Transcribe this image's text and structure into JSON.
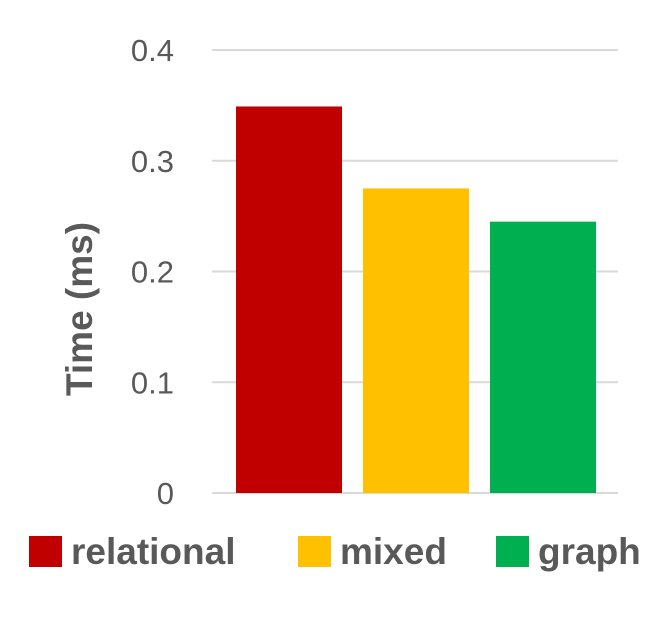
{
  "chart_data": {
    "type": "bar",
    "categories": [
      "relational",
      "mixed",
      "graph"
    ],
    "values": [
      0.349,
      0.275,
      0.245
    ],
    "colors": [
      "#c00000",
      "#ffc000",
      "#00b050"
    ],
    "ylabel": "Time (ms)",
    "xlabel": "",
    "ylim": [
      0,
      0.4
    ],
    "yticks": [
      "0",
      "0.1",
      "0.2",
      "0.3",
      "0.4"
    ],
    "grid": true,
    "legend": {
      "position": "bottom",
      "entries": [
        "relational",
        "mixed",
        "graph"
      ]
    }
  }
}
